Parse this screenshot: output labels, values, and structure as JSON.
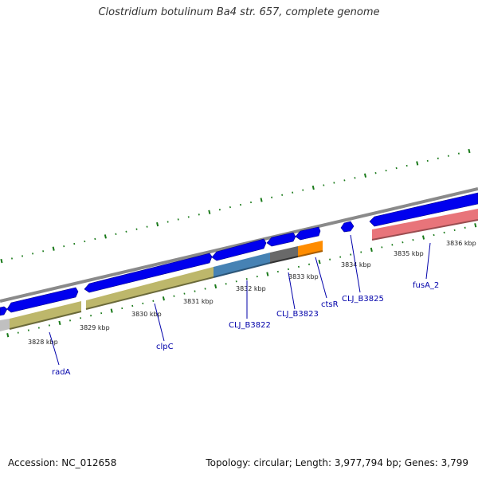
{
  "title": "Clostridium botulinum Ba4 str. 657, complete genome",
  "footer": {
    "accession": "Accession: NC_012658",
    "summary": "Topology: circular; Length: 3,977,794 bp; Genes: 3,799"
  },
  "ticks": [
    {
      "label": "3828 kbp"
    },
    {
      "label": "3829 kbp"
    },
    {
      "label": "3830 kbp"
    },
    {
      "label": "3831 kbp"
    },
    {
      "label": "3832 kbp"
    },
    {
      "label": "3833 kbp"
    },
    {
      "label": "3834 kbp"
    },
    {
      "label": "3835 kbp"
    },
    {
      "label": "3836 kbp"
    }
  ],
  "gene_labels": [
    {
      "name": "radA",
      "color": "#0000aa"
    },
    {
      "name": "clpC",
      "color": "#0000aa"
    },
    {
      "name": "CLJ_B3822",
      "color": "#0000aa"
    },
    {
      "name": "CLJ_B3823",
      "color": "#0000aa"
    },
    {
      "name": "ctsR",
      "color": "#0000aa"
    },
    {
      "name": "CLJ_B3825",
      "color": "#0000aa"
    },
    {
      "name": "fusA_2",
      "color": "#0000aa"
    }
  ],
  "colors": {
    "cds": "#0000ff",
    "backbone": "#888888",
    "tick": "#1a7a1a",
    "khaki": "#bdb76b",
    "steelblue": "#4682b4",
    "gray": "#696969",
    "orange": "#ff8c00",
    "pink": "#e8747a",
    "silver": "#c0c0c0"
  }
}
